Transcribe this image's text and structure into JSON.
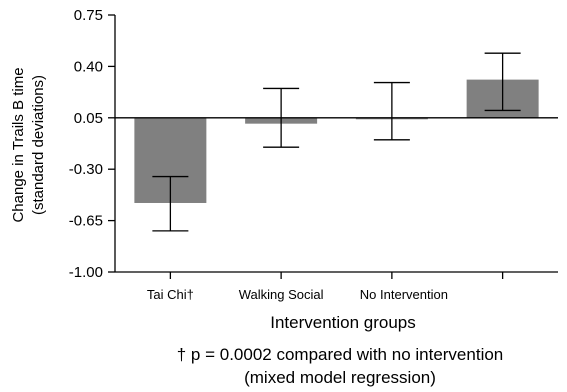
{
  "chart_data": {
    "type": "bar",
    "ylabel": [
      "Change in Trails B time",
      "(standard deviations)"
    ],
    "xlabel": "Intervention groups",
    "categories": [
      "Tai Chi†",
      "Walking Social",
      "No Intervention",
      ""
    ],
    "values": [
      -0.53,
      0.01,
      0.05,
      0.31
    ],
    "error_low": [
      -0.72,
      -0.15,
      -0.1,
      0.1
    ],
    "error_high": [
      -0.35,
      0.25,
      0.29,
      0.49
    ],
    "baseline": 0.05,
    "ylim": [
      -1.0,
      0.75
    ],
    "yticks": [
      -1.0,
      -0.65,
      -0.3,
      0.05,
      0.4,
      0.75
    ],
    "ytick_labels": [
      "-1.00",
      "-0.65",
      "-0.30",
      "0.05",
      "0.40",
      "0.75"
    ],
    "bar_color": "#808080",
    "grid": false
  },
  "footnote": {
    "line1": "† p = 0.0002 compared with no intervention",
    "line2": "(mixed model regression)"
  }
}
